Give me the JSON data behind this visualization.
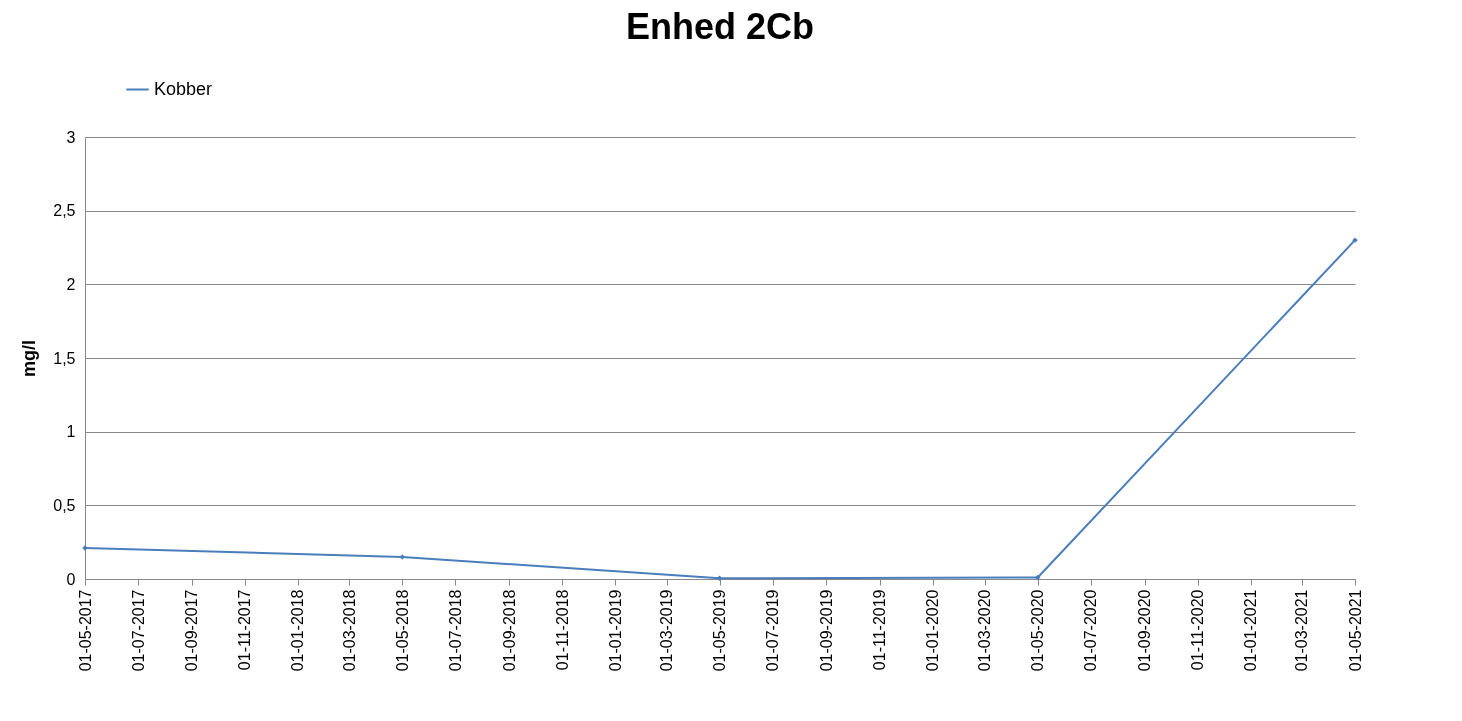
{
  "chart_data": {
    "type": "line",
    "title": "Enhed 2Cb",
    "ylabel": "mg/l",
    "x": [
      "2017-05-01",
      "2018-05-01",
      "2019-05-01",
      "2020-05-01",
      "2021-05-01"
    ],
    "series": [
      {
        "name": "Kobber",
        "color": "#4a7ebb",
        "values": [
          0.21,
          0.15,
          0.005,
          0.01,
          2.3
        ]
      }
    ],
    "xlim": [
      "2017-05-01",
      "2021-05-01"
    ],
    "xticks": [
      {
        "value": "2017-05-01",
        "label": "01-05-2017"
      },
      {
        "value": "2017-07-01",
        "label": "01-07-2017"
      },
      {
        "value": "2017-09-01",
        "label": "01-09-2017"
      },
      {
        "value": "2017-11-01",
        "label": "01-11-2017"
      },
      {
        "value": "2018-01-01",
        "label": "01-01-2018"
      },
      {
        "value": "2018-03-01",
        "label": "01-03-2018"
      },
      {
        "value": "2018-05-01",
        "label": "01-05-2018"
      },
      {
        "value": "2018-07-01",
        "label": "01-07-2018"
      },
      {
        "value": "2018-09-01",
        "label": "01-09-2018"
      },
      {
        "value": "2018-11-01",
        "label": "01-11-2018"
      },
      {
        "value": "2019-01-01",
        "label": "01-01-2019"
      },
      {
        "value": "2019-03-01",
        "label": "01-03-2019"
      },
      {
        "value": "2019-05-01",
        "label": "01-05-2019"
      },
      {
        "value": "2019-07-01",
        "label": "01-07-2019"
      },
      {
        "value": "2019-09-01",
        "label": "01-09-2019"
      },
      {
        "value": "2019-11-01",
        "label": "01-11-2019"
      },
      {
        "value": "2020-01-01",
        "label": "01-01-2020"
      },
      {
        "value": "2020-03-01",
        "label": "01-03-2020"
      },
      {
        "value": "2020-05-01",
        "label": "01-05-2020"
      },
      {
        "value": "2020-07-01",
        "label": "01-07-2020"
      },
      {
        "value": "2020-09-01",
        "label": "01-09-2020"
      },
      {
        "value": "2020-11-01",
        "label": "01-11-2020"
      },
      {
        "value": "2021-01-01",
        "label": "01-01-2021"
      },
      {
        "value": "2021-03-01",
        "label": "01-03-2021"
      },
      {
        "value": "2021-05-01",
        "label": "01-05-2021"
      }
    ],
    "ylim": [
      0,
      3
    ],
    "yticks": [
      0,
      {
        "value": 0.5,
        "label": "0,5"
      },
      1,
      {
        "value": 1.5,
        "label": "1,5"
      },
      2,
      {
        "value": 2.5,
        "label": "2,5"
      },
      3
    ],
    "grid": "y",
    "legend": "top left",
    "marker": "diamond",
    "line_style": "solid"
  }
}
